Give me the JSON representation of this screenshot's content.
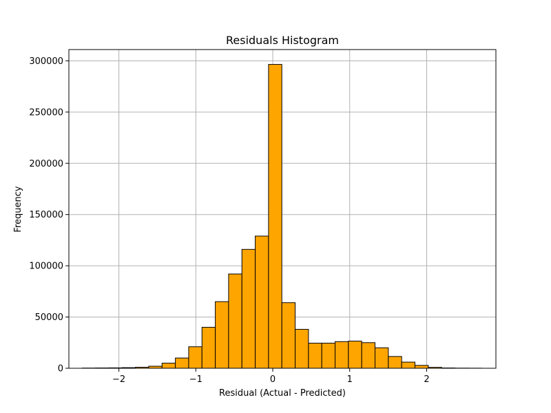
{
  "chart_data": {
    "type": "bar",
    "title": "Residuals Histogram",
    "xlabel": "Residual (Actual - Predicted)",
    "ylabel": "Frequency",
    "grid": true,
    "bar_color": "#ffa500",
    "edge_color": "#000000",
    "grid_color": "#b0b0b0",
    "xlim": [
      -2.65,
      2.9
    ],
    "ylim": [
      0,
      311000
    ],
    "xticks": [
      -2,
      -1,
      0,
      1,
      2
    ],
    "xtick_labels": [
      "−2",
      "−1",
      "0",
      "1",
      "2"
    ],
    "yticks": [
      0,
      50000,
      100000,
      150000,
      200000,
      250000,
      300000
    ],
    "ytick_labels": [
      "0",
      "50000",
      "100000",
      "150000",
      "200000",
      "250000",
      "300000"
    ],
    "bins": [
      {
        "start": -2.477,
        "end": -2.304,
        "value": 200
      },
      {
        "start": -2.304,
        "end": -2.131,
        "value": 300
      },
      {
        "start": -2.131,
        "end": -1.958,
        "value": 400
      },
      {
        "start": -1.958,
        "end": -1.785,
        "value": 600
      },
      {
        "start": -1.785,
        "end": -1.612,
        "value": 1000
      },
      {
        "start": -1.612,
        "end": -1.439,
        "value": 2000
      },
      {
        "start": -1.439,
        "end": -1.266,
        "value": 5000
      },
      {
        "start": -1.266,
        "end": -1.093,
        "value": 10000
      },
      {
        "start": -1.093,
        "end": -0.92,
        "value": 21000
      },
      {
        "start": -0.92,
        "end": -0.747,
        "value": 40000
      },
      {
        "start": -0.747,
        "end": -0.574,
        "value": 65000
      },
      {
        "start": -0.574,
        "end": -0.401,
        "value": 92000
      },
      {
        "start": -0.401,
        "end": -0.228,
        "value": 116000
      },
      {
        "start": -0.228,
        "end": -0.055,
        "value": 129000
      },
      {
        "start": -0.055,
        "end": 0.118,
        "value": 296500
      },
      {
        "start": 0.118,
        "end": 0.291,
        "value": 64000
      },
      {
        "start": 0.291,
        "end": 0.464,
        "value": 38000
      },
      {
        "start": 0.464,
        "end": 0.637,
        "value": 24500
      },
      {
        "start": 0.637,
        "end": 0.81,
        "value": 24500
      },
      {
        "start": 0.81,
        "end": 0.983,
        "value": 26000
      },
      {
        "start": 0.983,
        "end": 1.156,
        "value": 26500
      },
      {
        "start": 1.156,
        "end": 1.329,
        "value": 25000
      },
      {
        "start": 1.329,
        "end": 1.502,
        "value": 20000
      },
      {
        "start": 1.502,
        "end": 1.675,
        "value": 11500
      },
      {
        "start": 1.675,
        "end": 1.848,
        "value": 6000
      },
      {
        "start": 1.848,
        "end": 2.021,
        "value": 2800
      },
      {
        "start": 2.021,
        "end": 2.194,
        "value": 900
      },
      {
        "start": 2.194,
        "end": 2.367,
        "value": 300
      },
      {
        "start": 2.367,
        "end": 2.54,
        "value": 150
      },
      {
        "start": 2.54,
        "end": 2.713,
        "value": 100
      }
    ]
  }
}
